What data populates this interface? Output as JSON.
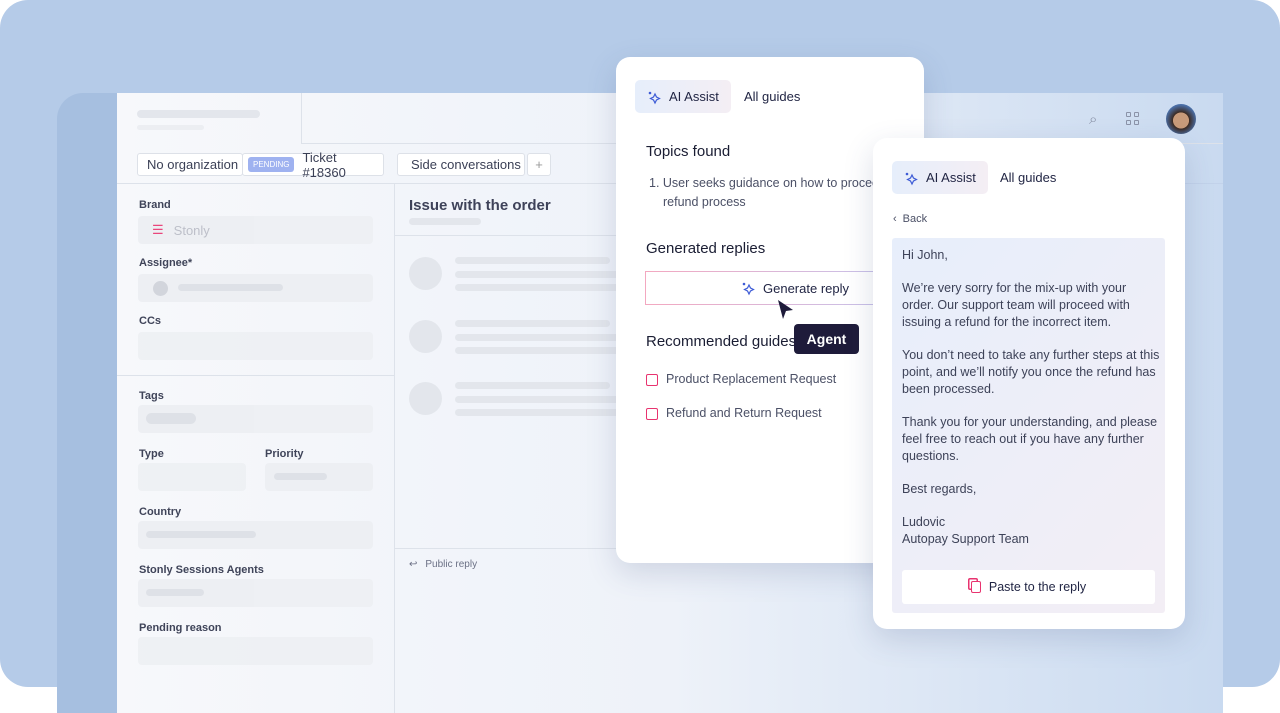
{
  "ticket": {
    "organization": "No organization",
    "status_badge": "PENDING",
    "ticket_label": "Ticket #18360",
    "side_conversations": "Side conversations",
    "add_label": "+",
    "fields": {
      "brand": "Brand",
      "brand_value": "Stonly",
      "assignee": "Assignee*",
      "ccs": "CCs",
      "tags": "Tags",
      "type": "Type",
      "priority": "Priority",
      "country": "Country",
      "sessions_agents": "Stonly Sessions Agents",
      "pending_reason": "Pending reason"
    },
    "subject": "Issue with the order",
    "public_reply": "Public reply"
  },
  "header": {
    "icons": [
      "search-icon",
      "apps-grid-icon",
      "avatar"
    ]
  },
  "panel_left": {
    "tabs": [
      "AI Assist",
      "All guides"
    ],
    "topics_title": "Topics found",
    "topics": [
      "1. User seeks guidance on how to proceed with the refund process"
    ],
    "generated_title": "Generated replies",
    "generate_button": "Generate reply",
    "cursor_tooltip": "Agent",
    "recommended_title": "Recommended guides",
    "guides": [
      "Product Replacement Request",
      "Refund and Return Request"
    ]
  },
  "panel_right": {
    "tabs": [
      "AI Assist",
      "All guides"
    ],
    "back": "Back",
    "reply": [
      "Hi John,",
      "We’re very sorry for the mix-up with your order. Our support team will proceed with issuing a refund for the incorrect item.",
      "You don’t need to take any further steps at this point, and we’ll notify you once the refund has been processed.",
      "Thank you for your understanding, and please feel free to reach out if you have any further questions.",
      "Best regards,",
      "Ludovic\nAutopay Support Team"
    ],
    "paste_button": "Paste to the reply"
  },
  "colors": {
    "accent": "#3d5bd6",
    "pink": "#e8336f",
    "tooltip": "#1e1b3a",
    "badge": "#9fb2f0"
  }
}
